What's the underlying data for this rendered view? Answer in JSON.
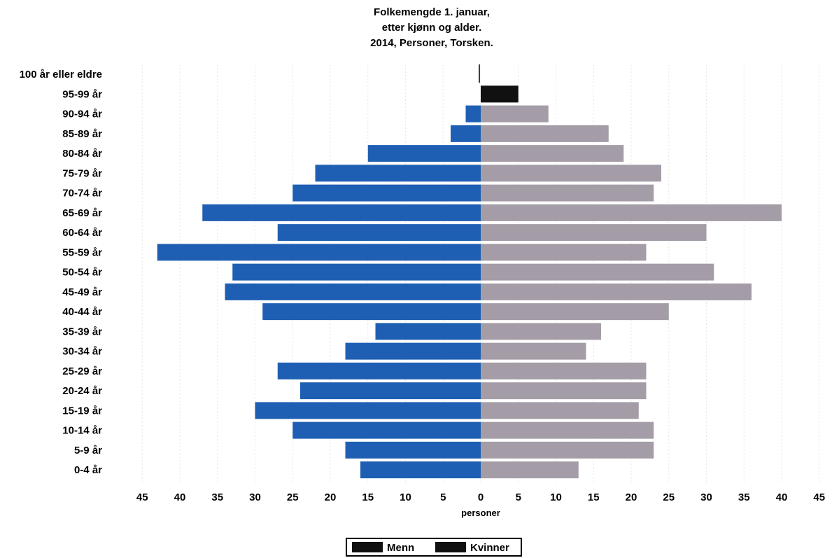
{
  "colors": {
    "men": "#1f5fb3",
    "women": "#a49ca6",
    "legend_swatch": "#111111",
    "grid": "#e6e6e6"
  },
  "chart_data": {
    "type": "bar",
    "orientation": "horizontal",
    "title": [
      "Folkemengde 1. januar,",
      "etter kjønn og alder.",
      "2014, Personer, Torsken."
    ],
    "xlabel": "personer",
    "xlim": [
      -45,
      45
    ],
    "xticks": [
      "45",
      "40",
      "35",
      "30",
      "25",
      "20",
      "15",
      "10",
      "5",
      "0",
      "5",
      "10",
      "15",
      "20",
      "25",
      "30",
      "35",
      "40",
      "45"
    ],
    "grid": true,
    "legend_position": "bottom-center",
    "categories": [
      "100 år eller eldre",
      "95-99 år",
      "90-94 år",
      "85-89 år",
      "80-84 år",
      "75-79 år",
      "70-74 år",
      "65-69 år",
      "60-64 år",
      "55-59 år",
      "50-54 år",
      "45-49 år",
      "40-44 år",
      "35-39 år",
      "30-34 år",
      "25-29 år",
      "20-24 år",
      "15-19 år",
      "10-14 år",
      "5-9 år",
      "0-4 år"
    ],
    "series": [
      {
        "name": "Menn",
        "values": [
          0,
          0,
          2,
          4,
          15,
          22,
          25,
          37,
          27,
          43,
          33,
          34,
          29,
          14,
          18,
          27,
          24,
          30,
          25,
          18,
          16
        ]
      },
      {
        "name": "Kvinner",
        "values": [
          0,
          5,
          9,
          17,
          19,
          24,
          23,
          40,
          30,
          22,
          31,
          36,
          25,
          16,
          14,
          22,
          22,
          21,
          23,
          23,
          13
        ]
      }
    ]
  }
}
